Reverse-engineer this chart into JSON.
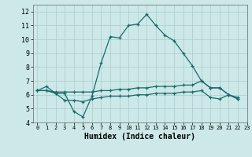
{
  "xlabel": "Humidex (Indice chaleur)",
  "xlim": [
    -0.5,
    23
  ],
  "ylim": [
    4,
    12.5
  ],
  "yticks": [
    4,
    5,
    6,
    7,
    8,
    9,
    10,
    11,
    12
  ],
  "xticks": [
    0,
    1,
    2,
    3,
    4,
    5,
    6,
    7,
    8,
    9,
    10,
    11,
    12,
    13,
    14,
    15,
    16,
    17,
    18,
    19,
    20,
    21,
    22,
    23
  ],
  "bg_color": "#cce8e8",
  "line_color": "#1a6b6b",
  "grid_color": "#aacccc",
  "series": [
    [
      6.3,
      6.6,
      6.1,
      6.1,
      4.8,
      4.4,
      5.9,
      8.3,
      10.2,
      10.1,
      11.0,
      11.1,
      11.8,
      11.0,
      10.3,
      9.9,
      9.0,
      8.1,
      7.0,
      6.5,
      6.5,
      6.0,
      5.7
    ],
    [
      6.3,
      6.3,
      6.2,
      6.2,
      6.2,
      6.2,
      6.2,
      6.3,
      6.3,
      6.4,
      6.4,
      6.5,
      6.5,
      6.6,
      6.6,
      6.6,
      6.7,
      6.7,
      7.0,
      6.5,
      6.5,
      6.0,
      5.8
    ],
    [
      6.3,
      6.3,
      6.1,
      5.6,
      5.6,
      5.5,
      5.7,
      5.8,
      5.9,
      5.9,
      5.9,
      6.0,
      6.0,
      6.1,
      6.1,
      6.1,
      6.2,
      6.2,
      6.3,
      5.8,
      5.7,
      6.0,
      5.7
    ]
  ]
}
